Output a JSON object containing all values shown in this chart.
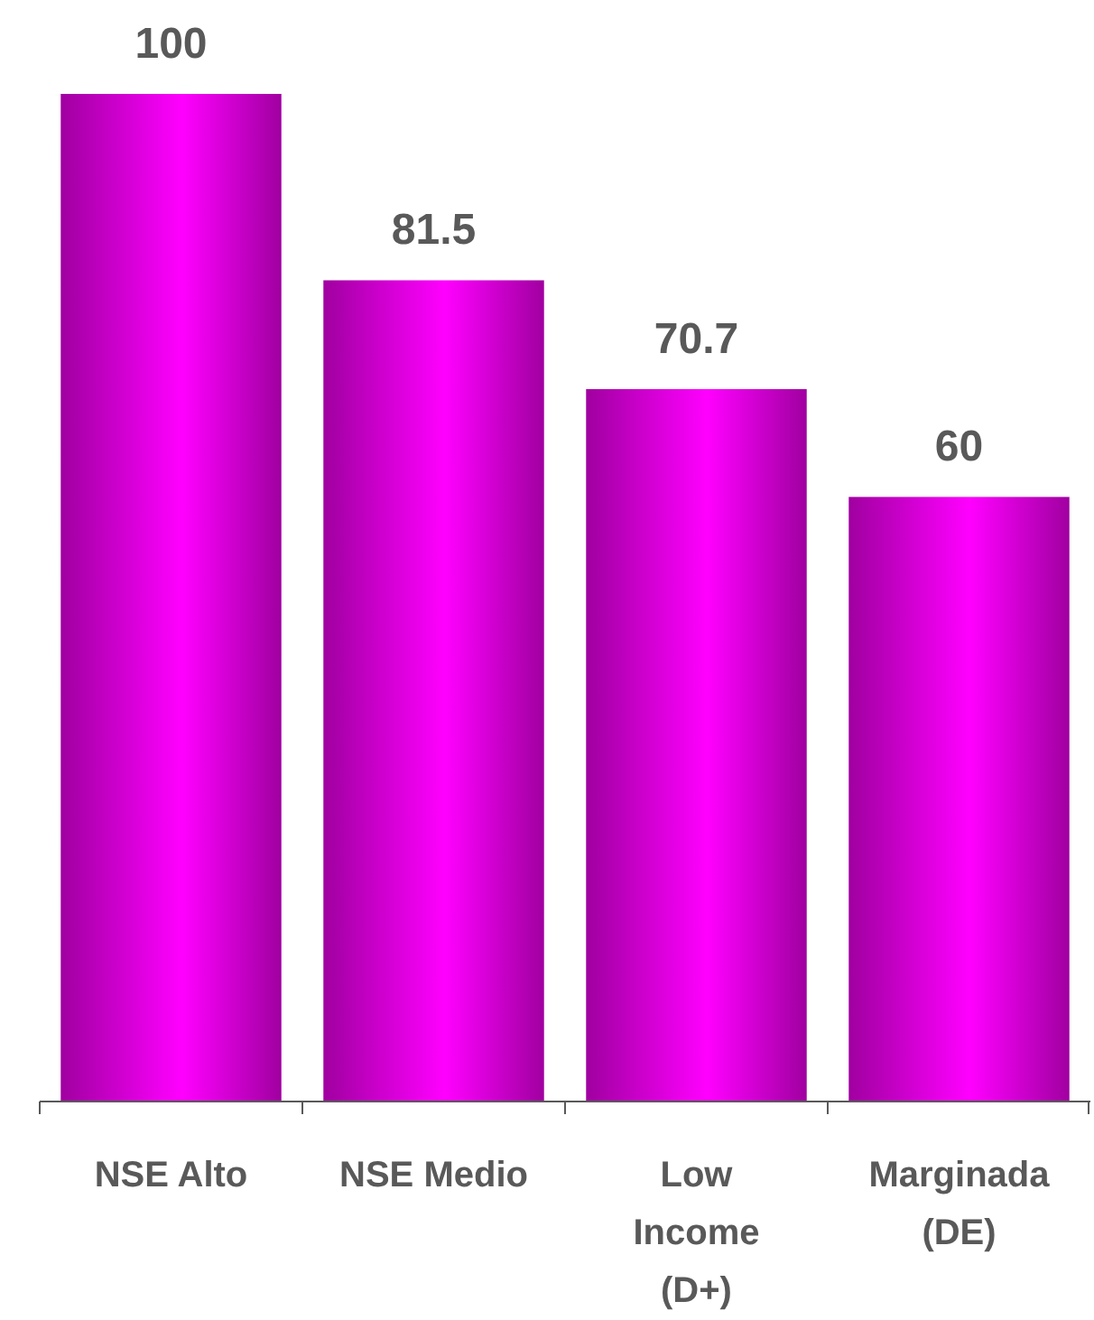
{
  "chart_data": {
    "type": "bar",
    "categories": [
      "NSE Alto",
      "NSE Medio",
      "Low Income (D+)",
      "Marginada (DE)"
    ],
    "values": [
      100,
      81.5,
      70.7,
      60
    ],
    "color": "#ff00ff",
    "data_labels": true,
    "ylim": [
      0,
      100
    ],
    "tick_labels": "x"
  }
}
